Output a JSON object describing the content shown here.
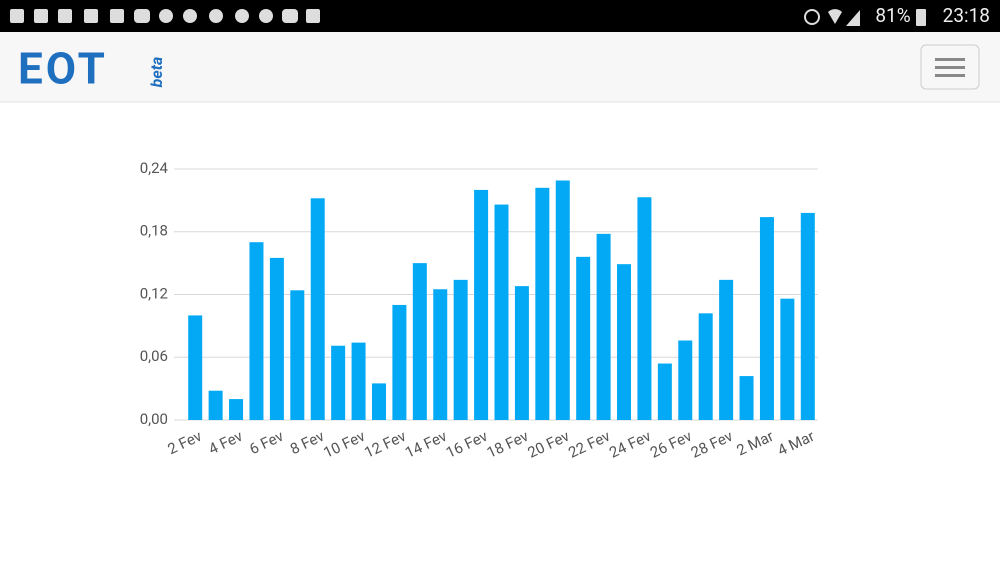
{
  "status_bar": {
    "battery": "81%",
    "time": "23:18"
  },
  "header": {
    "logo": "EOT",
    "badge": "beta"
  },
  "chart_data": {
    "type": "bar",
    "categories": [
      "2 Fev",
      null,
      "4 Fev",
      null,
      "6 Fev",
      null,
      "8 Fev",
      null,
      "10 Fev",
      null,
      "12 Fev",
      null,
      "14 Fev",
      null,
      "16 Fev",
      null,
      "18 Fev",
      null,
      "20 Fev",
      null,
      "22 Fev",
      null,
      "24 Fev",
      null,
      "26 Fev",
      null,
      "28 Fev",
      null,
      "2 Mar",
      null,
      "4 Mar"
    ],
    "values": [
      0.1,
      0.028,
      0.02,
      0.17,
      0.155,
      0.124,
      0.212,
      0.071,
      0.074,
      0.035,
      0.11,
      0.15,
      0.125,
      0.134,
      0.22,
      0.206,
      0.128,
      0.222,
      0.229,
      0.156,
      0.178,
      0.149,
      0.213,
      0.054,
      0.076,
      0.102,
      0.134,
      0.042,
      0.194,
      0.116,
      0.198
    ],
    "color": "#03a9f4",
    "ylim": [
      0,
      0.24
    ],
    "yticks": [
      {
        "value": 0,
        "label": "0,00"
      },
      {
        "value": 0.06,
        "label": "0,06"
      },
      {
        "value": 0.12,
        "label": "0,12"
      },
      {
        "value": 0.18,
        "label": "0,18"
      },
      {
        "value": 0.24,
        "label": "0,24"
      }
    ],
    "grid": true
  }
}
